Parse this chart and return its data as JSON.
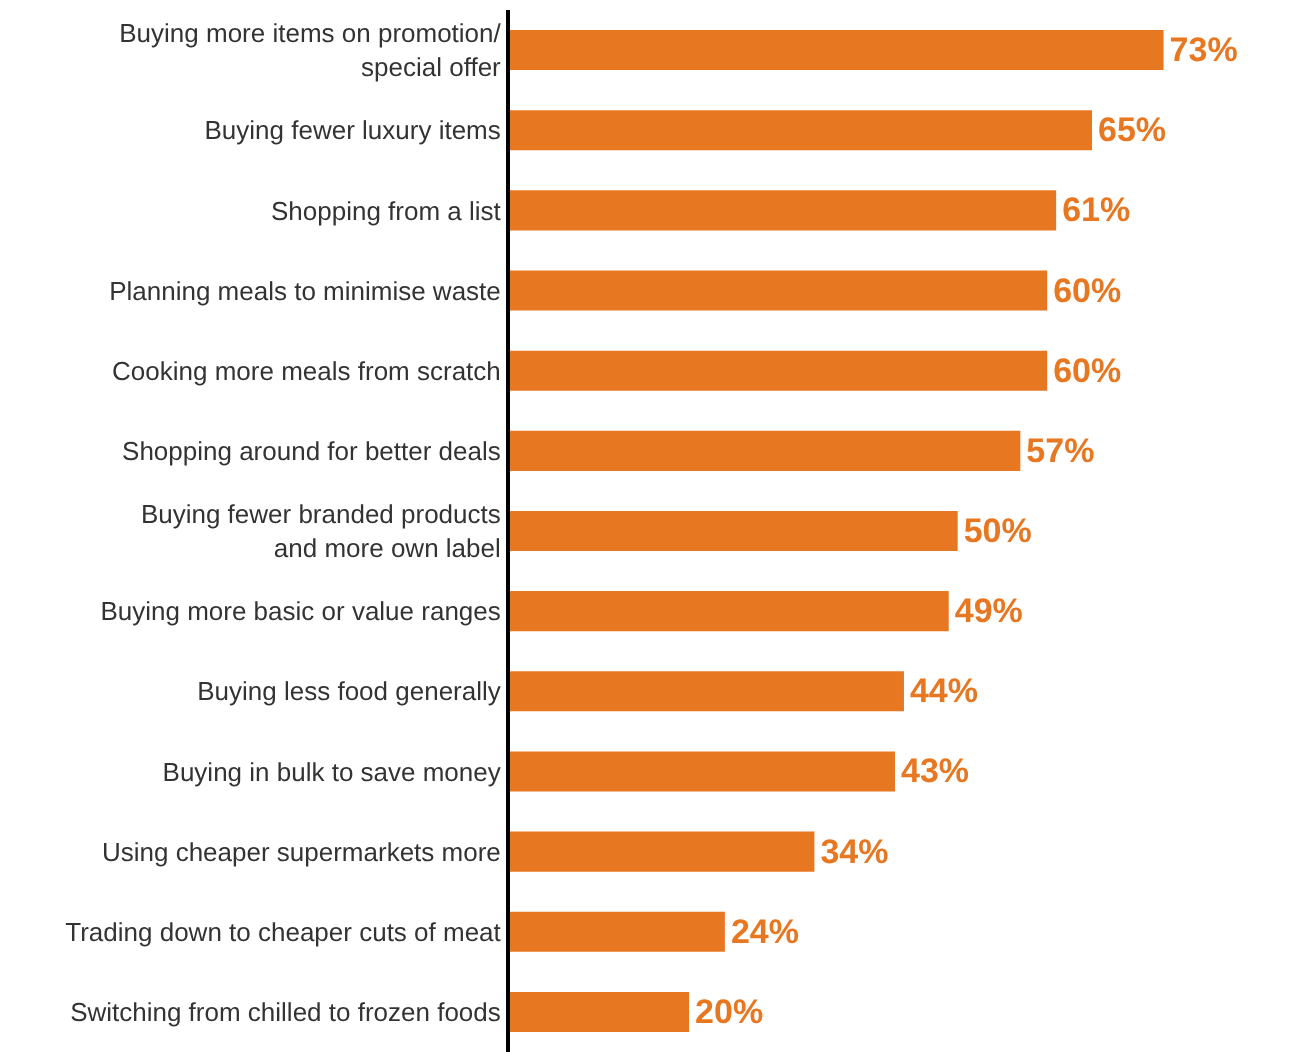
{
  "chart_data": {
    "type": "bar",
    "orientation": "horizontal",
    "tick_labels": "y",
    "legend": false,
    "categories": [
      "Buying more items on promotion/\nspecial offer",
      "Buying fewer luxury items",
      "Shopping from a list",
      "Planning meals to minimise waste",
      "Cooking more meals from scratch",
      "Shopping around for better deals",
      "Buying fewer branded products\nand more own label",
      "Buying more basic or value ranges",
      "Buying less food generally",
      "Buying in bulk to save money",
      "Using cheaper supermarkets more",
      "Trading down to cheaper cuts of meat",
      "Switching from chilled to frozen foods"
    ],
    "values": [
      73,
      65,
      61,
      60,
      60,
      57,
      50,
      49,
      44,
      43,
      34,
      24,
      20
    ],
    "value_labels": [
      "73%",
      "65%",
      "61%",
      "60%",
      "60%",
      "57%",
      "50%",
      "49%",
      "44%",
      "43%",
      "34%",
      "24%",
      "20%"
    ],
    "color": "#e87722"
  }
}
